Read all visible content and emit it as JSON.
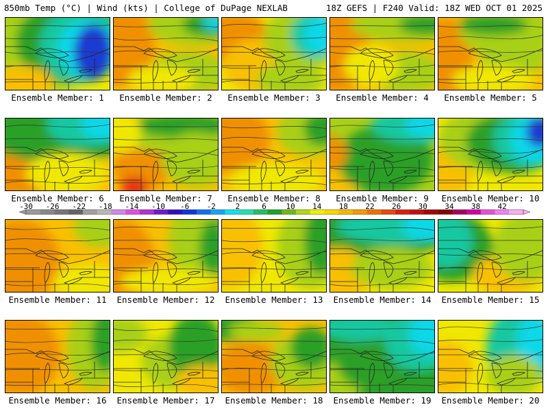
{
  "header": {
    "left": "850mb Temp (°C) | Wind (kts) | College of DuPage NEXLAB",
    "right": "18Z GEFS | F240 Valid: 18Z WED OCT 01 2025"
  },
  "colors": {
    "cold_blue": "#1a3ad0",
    "cyan": "#10d8e8",
    "teal": "#18c8a0",
    "green": "#2aa028",
    "yellow_green": "#a8d018",
    "yellow": "#f0e800",
    "gold": "#f8c000",
    "orange": "#f09000",
    "red": "#e83010"
  },
  "colorbar": {
    "labels": [
      "-30",
      "-26",
      "-22",
      "-18",
      "-14",
      "-10",
      "-6",
      "-2",
      "2",
      "6",
      "10",
      "14",
      "18",
      "22",
      "26",
      "30",
      "34",
      "38",
      "42"
    ],
    "colors": [
      "#9a9a9a",
      "#888888",
      "#767676",
      "#646464",
      "#a0a0a0",
      "#b8b8b8",
      "#d088e8",
      "#e050e0",
      "#b030d0",
      "#7018d0",
      "#3010c0",
      "#1038d8",
      "#1070f0",
      "#10a8f8",
      "#10e0f0",
      "#20e0b0",
      "#20c060",
      "#20a028",
      "#70b818",
      "#b0d818",
      "#f0f000",
      "#f8d800",
      "#f8b800",
      "#f89800",
      "#f07000",
      "#e84810",
      "#d82010",
      "#c01010",
      "#a00808",
      "#880000",
      "#a80060",
      "#d000a0",
      "#e850d0",
      "#f080f0",
      "#f8b0f0"
    ]
  },
  "members": [
    {
      "label": "Ensemble Member: 1"
    },
    {
      "label": "Ensemble Member: 2"
    },
    {
      "label": "Ensemble Member: 3"
    },
    {
      "label": "Ensemble Member: 4"
    },
    {
      "label": "Ensemble Member: 5"
    },
    {
      "label": "Ensemble Member: 6"
    },
    {
      "label": "Ensemble Member: 7"
    },
    {
      "label": "Ensemble Member: 8"
    },
    {
      "label": "Ensemble Member: 9"
    },
    {
      "label": "Ensemble Member: 10"
    },
    {
      "label": "Ensemble Member: 11"
    },
    {
      "label": "Ensemble Member: 12"
    },
    {
      "label": "Ensemble Member: 13"
    },
    {
      "label": "Ensemble Member: 14"
    },
    {
      "label": "Ensemble Member: 15"
    },
    {
      "label": "Ensemble Member: 16"
    },
    {
      "label": "Ensemble Member: 17"
    },
    {
      "label": "Ensemble Member: 18"
    },
    {
      "label": "Ensemble Member: 19"
    },
    {
      "label": "Ensemble Member: 20"
    }
  ]
}
